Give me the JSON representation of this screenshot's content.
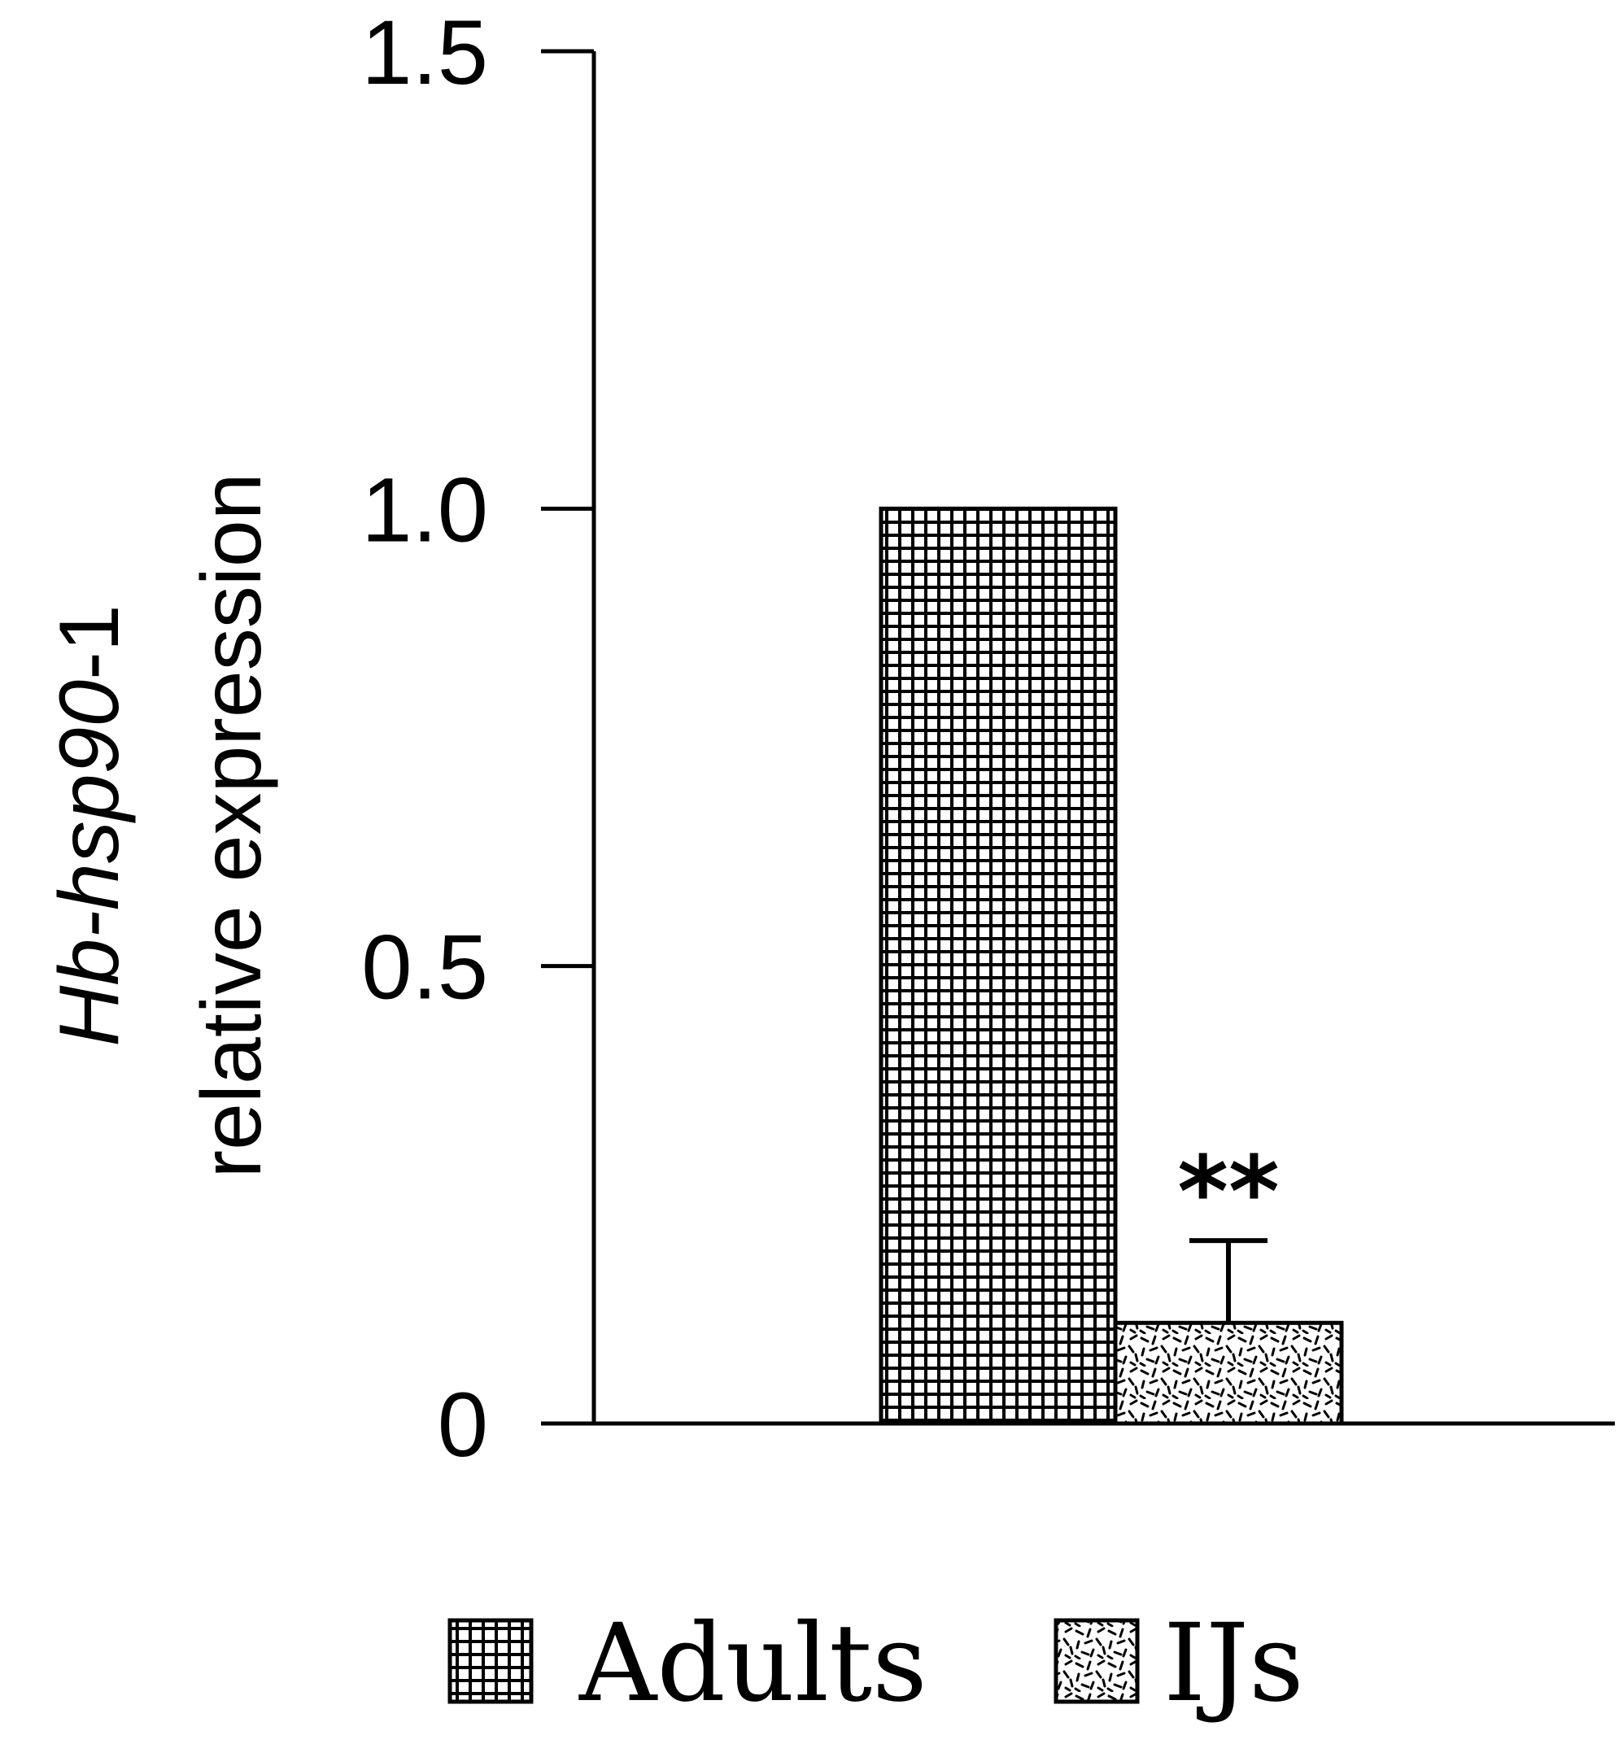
{
  "chart_data": {
    "type": "bar",
    "categories": [
      "Adults",
      "IJs"
    ],
    "values": [
      1.0,
      0.11
    ],
    "errors": [
      0,
      0.09
    ],
    "significance": [
      "",
      "**"
    ],
    "ylabel_line1_italic": "Hb-hsp90",
    "ylabel_line1_suffix": "-1",
    "ylabel_line2": "relative expression",
    "ylim": [
      0,
      1.5
    ],
    "yticks": [
      0,
      0.5,
      1.0,
      1.5
    ],
    "ytick_labels": [
      "0",
      "0.5",
      "1.0",
      "1.5"
    ],
    "grid": false,
    "legend_position": "bottom",
    "legend": [
      {
        "label": "Adults",
        "pattern": "grid"
      },
      {
        "label": "IJs",
        "pattern": "dashes"
      }
    ]
  }
}
